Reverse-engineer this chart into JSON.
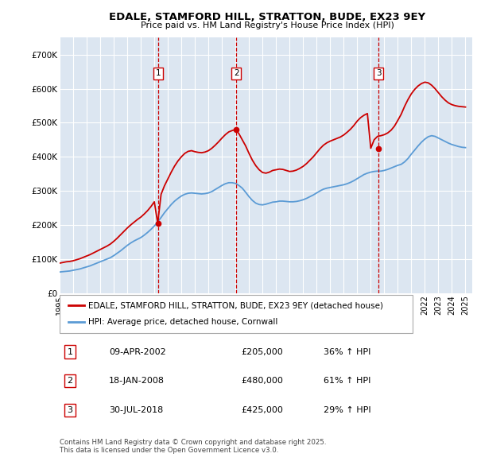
{
  "title": "EDALE, STAMFORD HILL, STRATTON, BUDE, EX23 9EY",
  "subtitle": "Price paid vs. HM Land Registry's House Price Index (HPI)",
  "bg_color": "#dce6f1",
  "ylim": [
    0,
    750000
  ],
  "yticks": [
    0,
    100000,
    200000,
    300000,
    400000,
    500000,
    600000,
    700000
  ],
  "ytick_labels": [
    "£0",
    "£100K",
    "£200K",
    "£300K",
    "£400K",
    "£500K",
    "£600K",
    "£700K"
  ],
  "legend_line1": "EDALE, STAMFORD HILL, STRATTON, BUDE, EX23 9EY (detached house)",
  "legend_line2": "HPI: Average price, detached house, Cornwall",
  "footer": "Contains HM Land Registry data © Crown copyright and database right 2025.\nThis data is licensed under the Open Government Licence v3.0.",
  "sale_markers": [
    {
      "num": 1,
      "date_x": 2002.27,
      "price": 205000,
      "label": "09-APR-2002",
      "amount": "£205,000",
      "pct": "36% ↑ HPI"
    },
    {
      "num": 2,
      "date_x": 2008.05,
      "price": 480000,
      "label": "18-JAN-2008",
      "amount": "£480,000",
      "pct": "61% ↑ HPI"
    },
    {
      "num": 3,
      "date_x": 2018.58,
      "price": 425000,
      "label": "30-JUL-2018",
      "amount": "£425,000",
      "pct": "29% ↑ HPI"
    }
  ],
  "red_line_color": "#cc0000",
  "blue_line_color": "#5b9bd5",
  "hpi_line_data": {
    "x": [
      1995.0,
      1995.25,
      1995.5,
      1995.75,
      1996.0,
      1996.25,
      1996.5,
      1996.75,
      1997.0,
      1997.25,
      1997.5,
      1997.75,
      1998.0,
      1998.25,
      1998.5,
      1998.75,
      1999.0,
      1999.25,
      1999.5,
      1999.75,
      2000.0,
      2000.25,
      2000.5,
      2000.75,
      2001.0,
      2001.25,
      2001.5,
      2001.75,
      2002.0,
      2002.25,
      2002.5,
      2002.75,
      2003.0,
      2003.25,
      2003.5,
      2003.75,
      2004.0,
      2004.25,
      2004.5,
      2004.75,
      2005.0,
      2005.25,
      2005.5,
      2005.75,
      2006.0,
      2006.25,
      2006.5,
      2006.75,
      2007.0,
      2007.25,
      2007.5,
      2007.75,
      2008.0,
      2008.25,
      2008.5,
      2008.75,
      2009.0,
      2009.25,
      2009.5,
      2009.75,
      2010.0,
      2010.25,
      2010.5,
      2010.75,
      2011.0,
      2011.25,
      2011.5,
      2011.75,
      2012.0,
      2012.25,
      2012.5,
      2012.75,
      2013.0,
      2013.25,
      2013.5,
      2013.75,
      2014.0,
      2014.25,
      2014.5,
      2014.75,
      2015.0,
      2015.25,
      2015.5,
      2015.75,
      2016.0,
      2016.25,
      2016.5,
      2016.75,
      2017.0,
      2017.25,
      2017.5,
      2017.75,
      2018.0,
      2018.25,
      2018.5,
      2018.75,
      2019.0,
      2019.25,
      2019.5,
      2019.75,
      2020.0,
      2020.25,
      2020.5,
      2020.75,
      2021.0,
      2021.25,
      2021.5,
      2021.75,
      2022.0,
      2022.25,
      2022.5,
      2022.75,
      2023.0,
      2023.25,
      2023.5,
      2023.75,
      2024.0,
      2024.25,
      2024.5,
      2024.75,
      2025.0
    ],
    "y": [
      62000,
      63000,
      64000,
      65000,
      67000,
      69000,
      71000,
      74000,
      77000,
      80000,
      84000,
      88000,
      92000,
      96000,
      100000,
      104000,
      110000,
      117000,
      124000,
      132000,
      140000,
      147000,
      153000,
      158000,
      163000,
      170000,
      178000,
      187000,
      197000,
      209000,
      222000,
      236000,
      248000,
      260000,
      270000,
      278000,
      285000,
      290000,
      293000,
      294000,
      293000,
      292000,
      291000,
      292000,
      294000,
      298000,
      304000,
      310000,
      316000,
      321000,
      324000,
      324000,
      322000,
      316000,
      308000,
      296000,
      283000,
      272000,
      264000,
      260000,
      259000,
      261000,
      264000,
      267000,
      268000,
      270000,
      270000,
      269000,
      268000,
      268000,
      269000,
      271000,
      274000,
      278000,
      283000,
      288000,
      294000,
      300000,
      305000,
      308000,
      310000,
      312000,
      314000,
      316000,
      318000,
      321000,
      325000,
      330000,
      336000,
      342000,
      348000,
      352000,
      355000,
      357000,
      358000,
      358000,
      360000,
      363000,
      367000,
      371000,
      375000,
      378000,
      385000,
      395000,
      408000,
      420000,
      432000,
      443000,
      452000,
      459000,
      462000,
      460000,
      455000,
      450000,
      445000,
      440000,
      436000,
      433000,
      430000,
      428000,
      427000
    ]
  },
  "red_line_data": {
    "x": [
      1995.0,
      1995.25,
      1995.5,
      1995.75,
      1996.0,
      1996.25,
      1996.5,
      1996.75,
      1997.0,
      1997.25,
      1997.5,
      1997.75,
      1998.0,
      1998.25,
      1998.5,
      1998.75,
      1999.0,
      1999.25,
      1999.5,
      1999.75,
      2000.0,
      2000.25,
      2000.5,
      2000.75,
      2001.0,
      2001.25,
      2001.5,
      2001.75,
      2002.0,
      2002.25,
      2002.5,
      2002.75,
      2003.0,
      2003.25,
      2003.5,
      2003.75,
      2004.0,
      2004.25,
      2004.5,
      2004.75,
      2005.0,
      2005.25,
      2005.5,
      2005.75,
      2006.0,
      2006.25,
      2006.5,
      2006.75,
      2007.0,
      2007.25,
      2007.5,
      2007.75,
      2008.0,
      2008.25,
      2008.5,
      2008.75,
      2009.0,
      2009.25,
      2009.5,
      2009.75,
      2010.0,
      2010.25,
      2010.5,
      2010.75,
      2011.0,
      2011.25,
      2011.5,
      2011.75,
      2012.0,
      2012.25,
      2012.5,
      2012.75,
      2013.0,
      2013.25,
      2013.5,
      2013.75,
      2014.0,
      2014.25,
      2014.5,
      2014.75,
      2015.0,
      2015.25,
      2015.5,
      2015.75,
      2016.0,
      2016.25,
      2016.5,
      2016.75,
      2017.0,
      2017.25,
      2017.5,
      2017.75,
      2018.0,
      2018.25,
      2018.5,
      2018.75,
      2019.0,
      2019.25,
      2019.5,
      2019.75,
      2020.0,
      2020.25,
      2020.5,
      2020.75,
      2021.0,
      2021.25,
      2021.5,
      2021.75,
      2022.0,
      2022.25,
      2022.5,
      2022.75,
      2023.0,
      2023.25,
      2023.5,
      2023.75,
      2024.0,
      2024.25,
      2024.5,
      2024.75,
      2025.0
    ],
    "y": [
      88000,
      90000,
      92000,
      93000,
      95000,
      98000,
      101000,
      105000,
      109000,
      113000,
      118000,
      123000,
      128000,
      133000,
      138000,
      144000,
      152000,
      161000,
      171000,
      181000,
      191000,
      200000,
      208000,
      216000,
      223000,
      232000,
      242000,
      254000,
      268000,
      205000,
      290000,
      315000,
      335000,
      355000,
      373000,
      388000,
      400000,
      410000,
      416000,
      418000,
      415000,
      413000,
      412000,
      414000,
      418000,
      425000,
      434000,
      444000,
      455000,
      465000,
      473000,
      477000,
      480000,
      468000,
      450000,
      432000,
      410000,
      390000,
      374000,
      362000,
      354000,
      352000,
      355000,
      360000,
      362000,
      364000,
      363000,
      360000,
      357000,
      358000,
      361000,
      366000,
      372000,
      380000,
      390000,
      400000,
      412000,
      424000,
      434000,
      441000,
      446000,
      450000,
      454000,
      458000,
      464000,
      472000,
      481000,
      492000,
      505000,
      515000,
      522000,
      527000,
      425000,
      450000,
      460000,
      462000,
      465000,
      470000,
      478000,
      490000,
      507000,
      525000,
      548000,
      568000,
      585000,
      598000,
      608000,
      615000,
      619000,
      617000,
      610000,
      600000,
      588000,
      576000,
      566000,
      558000,
      553000,
      550000,
      548000,
      547000,
      546000
    ]
  },
  "xmin": 1995.0,
  "xmax": 2025.5,
  "xtick_years": [
    1995,
    1996,
    1997,
    1998,
    1999,
    2000,
    2001,
    2002,
    2003,
    2004,
    2005,
    2006,
    2007,
    2008,
    2009,
    2010,
    2011,
    2012,
    2013,
    2014,
    2015,
    2016,
    2017,
    2018,
    2019,
    2020,
    2021,
    2022,
    2023,
    2024,
    2025
  ]
}
